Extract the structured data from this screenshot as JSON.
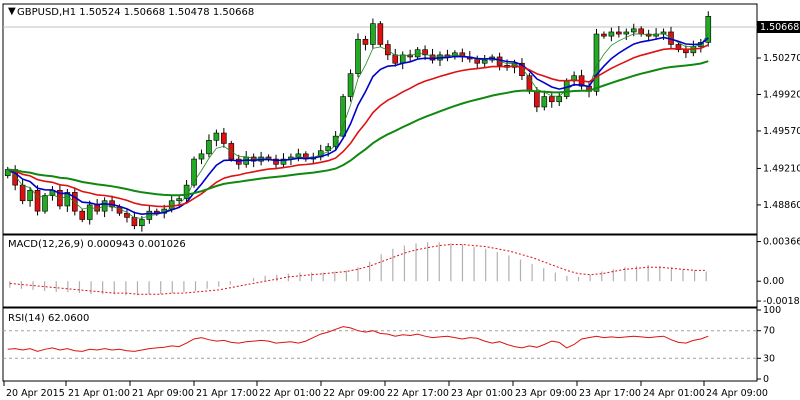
{
  "price_panel": {
    "symbol_line": "GBPUSD,H1  1.50524 1.50668 1.50478 1.50668",
    "current_price_label": "1.50668",
    "y_ticks": [
      "1.50270",
      "1.49920",
      "1.49570",
      "1.49210",
      "1.48860"
    ],
    "colors": {
      "bull": "#22aa22",
      "bear": "#dd1111",
      "ma_fast": "#0000cc",
      "ma_mid": "#dd1111",
      "ma_slow": "#118811",
      "ma_thin": "#228822"
    }
  },
  "macd_panel": {
    "label": "MACD(12,26,9) 0.000943 0.001026",
    "y_ticks": [
      "0.003666",
      "0.00",
      "-0.001836"
    ]
  },
  "rsi_panel": {
    "label": "RSI(14) 62.0600",
    "y_ticks": [
      "100",
      "70",
      "30",
      "0"
    ]
  },
  "x_axis": {
    "labels": [
      "20 Apr 2015",
      "21 Apr 01:00",
      "21 Apr 09:00",
      "21 Apr 17:00",
      "22 Apr 01:00",
      "22 Apr 09:00",
      "22 Apr 17:00",
      "23 Apr 01:00",
      "23 Apr 09:00",
      "23 Apr 17:00",
      "24 Apr 01:00",
      "24 Apr 09:00"
    ]
  },
  "chart_data": [
    {
      "type": "candlestick",
      "title": "GBPUSD,H1",
      "ylim": [
        1.486,
        1.5075
      ],
      "yticks": [
        1.5027,
        1.4992,
        1.4957,
        1.4921,
        1.4886
      ],
      "x_labels": [
        "20 Apr 2015",
        "21 Apr 01:00",
        "21 Apr 09:00",
        "21 Apr 17:00",
        "22 Apr 01:00",
        "22 Apr 09:00",
        "22 Apr 17:00",
        "23 Apr 01:00",
        "23 Apr 09:00",
        "23 Apr 17:00",
        "24 Apr 01:00",
        "24 Apr 09:00"
      ],
      "close_path": [
        1.492,
        1.4905,
        1.489,
        1.49,
        1.488,
        1.4895,
        1.49,
        1.4885,
        1.4898,
        1.488,
        1.4872,
        1.4886,
        1.488,
        1.489,
        1.4884,
        1.4878,
        1.4874,
        1.4866,
        1.4872,
        1.488,
        1.4878,
        1.4882,
        1.489,
        1.4892,
        1.4905,
        1.493,
        1.4935,
        1.4948,
        1.4955,
        1.4945,
        1.493,
        1.4925,
        1.4932,
        1.4928,
        1.4932,
        1.493,
        1.4925,
        1.493,
        1.4932,
        1.4935,
        1.493,
        1.4932,
        1.4938,
        1.4942,
        1.4952,
        1.499,
        1.5012,
        1.5045,
        1.504,
        1.506,
        1.504,
        1.503,
        1.5022,
        1.503,
        1.5028,
        1.5035,
        1.503,
        1.5025,
        1.503,
        1.5028,
        1.5032,
        1.5028,
        1.5026,
        1.5022,
        1.5025,
        1.5028,
        1.502,
        1.5018,
        1.5022,
        1.501,
        1.4995,
        1.498,
        1.499,
        1.4985,
        1.499,
        1.5005,
        1.501,
        1.5,
        1.4995,
        1.505,
        1.5048,
        1.5052,
        1.505,
        1.5052,
        1.5055,
        1.505,
        1.5048,
        1.505,
        1.5052,
        1.504,
        1.5035,
        1.5032,
        1.5038,
        1.5042,
        1.5067
      ],
      "last_price": 1.50668,
      "open": 1.50524,
      "high": 1.50668,
      "low": 1.50478,
      "close": 1.50668
    },
    {
      "type": "bar",
      "title": "MACD(12,26,9)",
      "ylim": [
        -0.0022,
        0.004
      ],
      "yticks": [
        0.003666,
        0.0,
        -0.001836
      ],
      "macd_value": 0.000943,
      "signal_value": 0.001026,
      "histogram": [
        -0.0006,
        -0.0007,
        -0.0008,
        -0.0009,
        -0.001,
        -0.001,
        -0.0011,
        -0.0012,
        -0.0012,
        -0.0012,
        -0.0013,
        -0.0013,
        -0.0012,
        -0.0012,
        -0.0011,
        -0.001,
        -0.0009,
        -0.0007,
        -0.0005,
        -0.0003,
        0.0,
        0.0003,
        0.0005,
        0.0006,
        0.0007,
        0.0008,
        0.0008,
        0.0008,
        0.0009,
        0.001,
        0.0013,
        0.0018,
        0.0025,
        0.003,
        0.0033,
        0.0035,
        0.0036,
        0.0036,
        0.0035,
        0.0034,
        0.0032,
        0.003,
        0.0027,
        0.0024,
        0.002,
        0.0016,
        0.0012,
        0.0008,
        0.0005,
        0.0004,
        0.0006,
        0.0009,
        0.0011,
        0.0013,
        0.0014,
        0.0015,
        0.0014,
        0.0013,
        0.0011,
        0.001,
        0.0009
      ],
      "signal": [
        -0.0002,
        -0.0003,
        -0.0004,
        -0.0005,
        -0.0006,
        -0.0007,
        -0.0008,
        -0.0009,
        -0.001,
        -0.0011,
        -0.0011,
        -0.0012,
        -0.0012,
        -0.0012,
        -0.0011,
        -0.0011,
        -0.001,
        -0.0009,
        -0.0008,
        -0.0006,
        -0.0004,
        -0.0002,
        0.0,
        0.0002,
        0.0004,
        0.0005,
        0.0006,
        0.0007,
        0.0008,
        0.0009,
        0.0011,
        0.0014,
        0.0018,
        0.0022,
        0.0026,
        0.0029,
        0.0031,
        0.0033,
        0.0034,
        0.0034,
        0.0033,
        0.0032,
        0.003,
        0.0028,
        0.0025,
        0.0022,
        0.0018,
        0.0014,
        0.001,
        0.0007,
        0.0006,
        0.0007,
        0.0009,
        0.0011,
        0.0012,
        0.0013,
        0.0013,
        0.0012,
        0.0011,
        0.001,
        0.001
      ]
    },
    {
      "type": "line",
      "title": "RSI(14)",
      "ylim": [
        0,
        100
      ],
      "yticks": [
        100,
        70,
        30,
        0
      ],
      "levels": [
        70,
        30
      ],
      "last_value": 62.06,
      "values": [
        43,
        44,
        42,
        44,
        40,
        43,
        45,
        42,
        44,
        41,
        40,
        43,
        42,
        44,
        42,
        43,
        41,
        40,
        42,
        44,
        45,
        46,
        48,
        47,
        52,
        58,
        60,
        57,
        55,
        56,
        53,
        52,
        54,
        55,
        56,
        55,
        52,
        53,
        54,
        52,
        55,
        60,
        65,
        68,
        72,
        76,
        74,
        70,
        68,
        70,
        66,
        65,
        62,
        64,
        63,
        65,
        62,
        60,
        61,
        62,
        60,
        58,
        60,
        59,
        55,
        52,
        54,
        50,
        47,
        45,
        48,
        46,
        50,
        55,
        53,
        45,
        50,
        58,
        60,
        62,
        60,
        61,
        60,
        61,
        62,
        61,
        60,
        61,
        62,
        57,
        53,
        52,
        56,
        58,
        62
      ]
    }
  ]
}
